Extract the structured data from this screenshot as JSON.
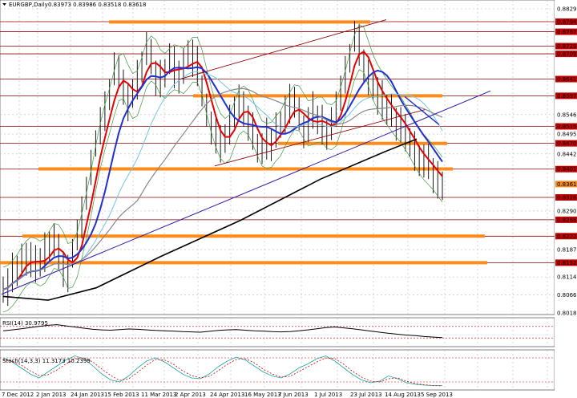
{
  "header": {
    "symbol_label": "EURGBP,Daily",
    "ohlc": "0.83973 0.83986 0.83518 0.83618"
  },
  "colors": {
    "background": "#ffffff",
    "grid": "#bbbbbb",
    "level_orange": "#ff8c1a",
    "level_darkred": "#8b0000",
    "ema_red": "#e60000",
    "ma_blue": "#1f2fd0",
    "ma_black": "#000000",
    "ma_gray": "#888888",
    "ma_cyan": "#6ec7e6",
    "bollinger_green": "#3e9a3e",
    "trend_purple": "#2b1aa8",
    "price_marker": "#f28a1f",
    "price_line_marker": "#c40000"
  },
  "chart_data": {
    "type": "line",
    "instrument": "EURGBP",
    "timeframe": "Daily",
    "ohlc_last": {
      "open": 0.83973,
      "high": 0.83986,
      "low": 0.83518,
      "close": 0.83618
    },
    "price_scale_labels": [
      "0.88290",
      "0.87947",
      "0.87679",
      "0.87295",
      "0.87090",
      "0.86417",
      "0.85971",
      "0.85465",
      "0.85155",
      "0.84950",
      "0.84703",
      "0.84420",
      "0.84016",
      "0.83618",
      "0.83261",
      "0.82902",
      "0.82665",
      "0.82228",
      "0.81870",
      "0.81520",
      "0.81140",
      "0.80660",
      "0.80180"
    ],
    "highlighted_levels": [
      "0.87947",
      "0.87679",
      "0.87295",
      "0.87090",
      "0.86417",
      "0.85971",
      "0.85155",
      "0.84703",
      "0.84016",
      "0.83261",
      "0.82665",
      "0.82228",
      "0.81520"
    ],
    "x_labels": [
      "7 Dec 2012",
      "2 Jan 2013",
      "24 Jan 2013",
      "15 Feb 2013",
      "11 Mar 2013",
      "2 Apr 2013",
      "24 Apr 2013",
      "16 May 2013",
      "7 Jun 2013",
      "1 Jul 2013",
      "23 Jul 2013",
      "14 Aug 2013",
      "5 Sep 2013"
    ],
    "closes": [
      0.808,
      0.809,
      0.812,
      0.813,
      0.815,
      0.817,
      0.816,
      0.814,
      0.815,
      0.818,
      0.82,
      0.821,
      0.817,
      0.814,
      0.812,
      0.818,
      0.822,
      0.827,
      0.834,
      0.84,
      0.847,
      0.852,
      0.855,
      0.86,
      0.866,
      0.867,
      0.862,
      0.857,
      0.86,
      0.864,
      0.868,
      0.872,
      0.869,
      0.865,
      0.864,
      0.866,
      0.869,
      0.867,
      0.865,
      0.867,
      0.871,
      0.87,
      0.867,
      0.861,
      0.855,
      0.852,
      0.849,
      0.846,
      0.848,
      0.852,
      0.856,
      0.858,
      0.855,
      0.853,
      0.85,
      0.846,
      0.845,
      0.848,
      0.847,
      0.85,
      0.852,
      0.855,
      0.857,
      0.858,
      0.854,
      0.851,
      0.852,
      0.855,
      0.853,
      0.852,
      0.85,
      0.852,
      0.855,
      0.861,
      0.865,
      0.87,
      0.875,
      0.873,
      0.868,
      0.864,
      0.862,
      0.86,
      0.858,
      0.856,
      0.855,
      0.853,
      0.852,
      0.849,
      0.847,
      0.845,
      0.843,
      0.842,
      0.841,
      0.839,
      0.837,
      0.836
    ],
    "indicators": [
      {
        "label": "RSI(14) 30.9795",
        "levels": [
          "70",
          "30"
        ]
      },
      {
        "label": "Stoch(14,3,3) 11.3173 10.2399",
        "levels": [
          "80",
          "20"
        ]
      }
    ],
    "rsi": [
      55,
      58,
      62,
      66,
      70,
      74,
      76,
      72,
      68,
      64,
      60,
      58,
      57,
      59,
      61,
      60,
      58,
      56,
      55,
      54,
      52,
      51,
      50,
      53,
      56,
      58,
      59,
      57,
      55,
      54,
      52,
      51,
      52,
      55,
      58,
      62,
      66,
      68,
      65,
      62,
      58,
      54,
      50,
      46,
      43,
      40,
      38,
      35,
      33,
      31
    ],
    "stoch_main": [
      80,
      70,
      55,
      40,
      30,
      45,
      60,
      75,
      85,
      78,
      60,
      40,
      25,
      20,
      35,
      55,
      72,
      80,
      70,
      55,
      40,
      30,
      28,
      40,
      58,
      72,
      82,
      75,
      60,
      45,
      35,
      30,
      40,
      55,
      65,
      78,
      85,
      72,
      55,
      38,
      25,
      18,
      22,
      35,
      28,
      18,
      14,
      12,
      11,
      11
    ],
    "stoch_signal": [
      75,
      72,
      62,
      48,
      36,
      38,
      50,
      65,
      78,
      80,
      70,
      52,
      36,
      24,
      28,
      44,
      62,
      76,
      75,
      64,
      48,
      36,
      30,
      34,
      48,
      64,
      76,
      78,
      68,
      52,
      40,
      32,
      34,
      46,
      58,
      70,
      80,
      78,
      64,
      46,
      32,
      22,
      20,
      28,
      30,
      22,
      16,
      13,
      11,
      10
    ]
  }
}
